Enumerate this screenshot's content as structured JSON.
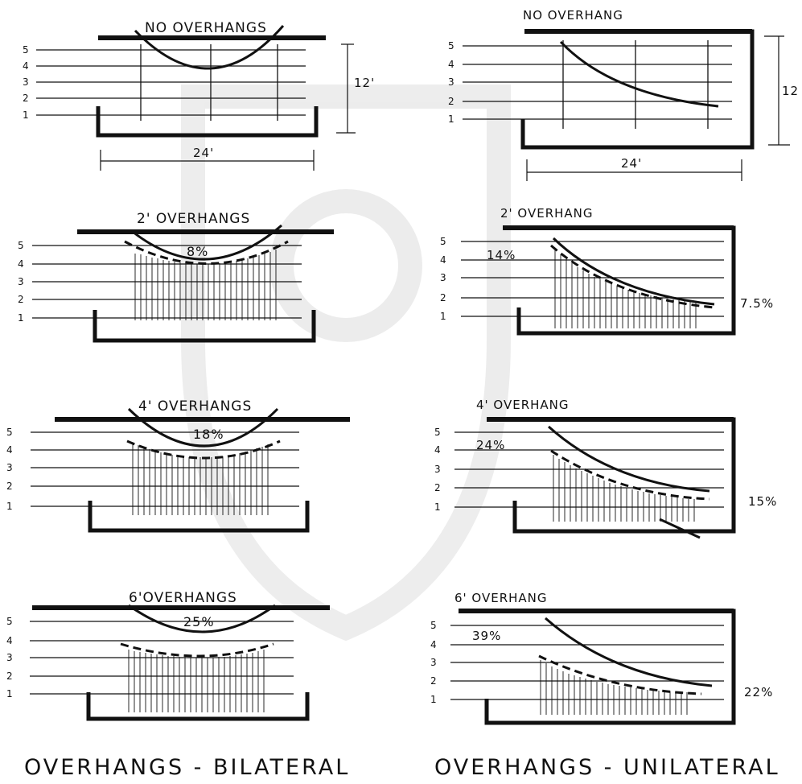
{
  "captions": {
    "bilateral": "OVERHANGS - BILATERAL",
    "unilateral": "OVERHANGS - UNILATERAL"
  },
  "dimensions": {
    "width": "24'",
    "height_left": "12'",
    "height_right": "12"
  },
  "level_labels": [
    "1",
    "2",
    "3",
    "4",
    "5"
  ],
  "bilateral": [
    {
      "title": "NO OVERHANGS",
      "percent": ""
    },
    {
      "title": "2' OVERHANGS",
      "percent": "8%"
    },
    {
      "title": "4' OVERHANGS",
      "percent": "18%"
    },
    {
      "title": "6'OVERHANGS",
      "percent": "25%"
    }
  ],
  "unilateral": [
    {
      "title": "NO OVERHANG",
      "inner_percent": "",
      "side_percent": ""
    },
    {
      "title": "2' OVERHANG",
      "inner_percent": "14%",
      "side_percent": "7.5%"
    },
    {
      "title": "4' OVERHANG",
      "inner_percent": "24%",
      "side_percent": "15%"
    },
    {
      "title": "6' OVERHANG",
      "inner_percent": "39%",
      "side_percent": "22%"
    }
  ],
  "colors": {
    "ink": "#111111",
    "paper": "#ffffff"
  }
}
